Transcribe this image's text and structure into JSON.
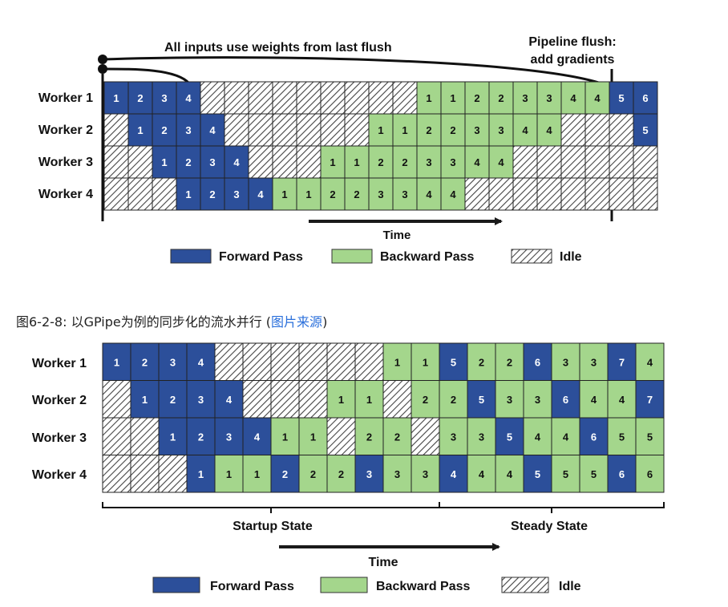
{
  "colors": {
    "forward": "#2c4f9a",
    "backward": "#a4d68c",
    "idle_bg": "#ffffff",
    "idle_line": "#444444",
    "arrow": "#1a1a1a",
    "link": "#2a6fdb"
  },
  "caption": {
    "text": "图6-2-8: 以GPipe为例的同步化的流水并行 (",
    "link": "图片来源",
    "close": ")"
  },
  "diagram1": {
    "annotation_left": "All inputs use weights from last flush",
    "annotation_right_1": "Pipeline flush:",
    "annotation_right_2": "add gradients",
    "time_label": "Time",
    "legend": {
      "forward": "Forward Pass",
      "backward": "Backward Pass",
      "idle": "Idle"
    },
    "workers": [
      "Worker 1",
      "Worker 2",
      "Worker 3",
      "Worker 4"
    ],
    "rows": [
      [
        [
          "F",
          "1"
        ],
        [
          "F",
          "2"
        ],
        [
          "F",
          "3"
        ],
        [
          "F",
          "4"
        ],
        [
          "I",
          ""
        ],
        [
          "I",
          ""
        ],
        [
          "I",
          ""
        ],
        [
          "I",
          ""
        ],
        [
          "I",
          ""
        ],
        [
          "I",
          ""
        ],
        [
          "I",
          ""
        ],
        [
          "I",
          ""
        ],
        [
          "I",
          ""
        ],
        [
          "B",
          "1"
        ],
        [
          "B",
          "1"
        ],
        [
          "B",
          "2"
        ],
        [
          "B",
          "2"
        ],
        [
          "B",
          "3"
        ],
        [
          "B",
          "3"
        ],
        [
          "B",
          "4"
        ],
        [
          "B",
          "4"
        ],
        [
          "F",
          "5"
        ],
        [
          "F",
          "6"
        ]
      ],
      [
        [
          "I",
          ""
        ],
        [
          "F",
          "1"
        ],
        [
          "F",
          "2"
        ],
        [
          "F",
          "3"
        ],
        [
          "F",
          "4"
        ],
        [
          "I",
          ""
        ],
        [
          "I",
          ""
        ],
        [
          "I",
          ""
        ],
        [
          "I",
          ""
        ],
        [
          "I",
          ""
        ],
        [
          "I",
          ""
        ],
        [
          "B",
          "1"
        ],
        [
          "B",
          "1"
        ],
        [
          "B",
          "2"
        ],
        [
          "B",
          "2"
        ],
        [
          "B",
          "3"
        ],
        [
          "B",
          "3"
        ],
        [
          "B",
          "4"
        ],
        [
          "B",
          "4"
        ],
        [
          "I",
          ""
        ],
        [
          "I",
          ""
        ],
        [
          "I",
          ""
        ],
        [
          "F",
          "5"
        ]
      ],
      [
        [
          "I",
          ""
        ],
        [
          "I",
          ""
        ],
        [
          "F",
          "1"
        ],
        [
          "F",
          "2"
        ],
        [
          "F",
          "3"
        ],
        [
          "F",
          "4"
        ],
        [
          "I",
          ""
        ],
        [
          "I",
          ""
        ],
        [
          "I",
          ""
        ],
        [
          "B",
          "1"
        ],
        [
          "B",
          "1"
        ],
        [
          "B",
          "2"
        ],
        [
          "B",
          "2"
        ],
        [
          "B",
          "3"
        ],
        [
          "B",
          "3"
        ],
        [
          "B",
          "4"
        ],
        [
          "B",
          "4"
        ],
        [
          "I",
          ""
        ],
        [
          "I",
          ""
        ],
        [
          "I",
          ""
        ],
        [
          "I",
          ""
        ],
        [
          "I",
          ""
        ],
        [
          "I",
          ""
        ]
      ],
      [
        [
          "I",
          ""
        ],
        [
          "I",
          ""
        ],
        [
          "I",
          ""
        ],
        [
          "F",
          "1"
        ],
        [
          "F",
          "2"
        ],
        [
          "F",
          "3"
        ],
        [
          "F",
          "4"
        ],
        [
          "B",
          "1"
        ],
        [
          "B",
          "1"
        ],
        [
          "B",
          "2"
        ],
        [
          "B",
          "2"
        ],
        [
          "B",
          "3"
        ],
        [
          "B",
          "3"
        ],
        [
          "B",
          "4"
        ],
        [
          "B",
          "4"
        ],
        [
          "I",
          ""
        ],
        [
          "I",
          ""
        ],
        [
          "I",
          ""
        ],
        [
          "I",
          ""
        ],
        [
          "I",
          ""
        ],
        [
          "I",
          ""
        ],
        [
          "I",
          ""
        ],
        [
          "I",
          ""
        ]
      ]
    ]
  },
  "diagram2": {
    "startup_label": "Startup State",
    "steady_label": "Steady State",
    "time_label": "Time",
    "legend": {
      "forward": "Forward Pass",
      "backward": "Backward Pass",
      "idle": "Idle"
    },
    "workers": [
      "Worker 1",
      "Worker 2",
      "Worker 3",
      "Worker 4"
    ],
    "rows": [
      [
        [
          "F",
          "1"
        ],
        [
          "F",
          "2"
        ],
        [
          "F",
          "3"
        ],
        [
          "F",
          "4"
        ],
        [
          "I",
          ""
        ],
        [
          "I",
          ""
        ],
        [
          "I",
          ""
        ],
        [
          "I",
          ""
        ],
        [
          "I",
          ""
        ],
        [
          "I",
          ""
        ],
        [
          "B",
          "1"
        ],
        [
          "B",
          "1"
        ],
        [
          "F",
          "5"
        ],
        [
          "B",
          "2"
        ],
        [
          "B",
          "2"
        ],
        [
          "F",
          "6"
        ],
        [
          "B",
          "3"
        ],
        [
          "B",
          "3"
        ],
        [
          "F",
          "7"
        ],
        [
          "B",
          "4"
        ]
      ],
      [
        [
          "I",
          ""
        ],
        [
          "F",
          "1"
        ],
        [
          "F",
          "2"
        ],
        [
          "F",
          "3"
        ],
        [
          "F",
          "4"
        ],
        [
          "I",
          ""
        ],
        [
          "I",
          ""
        ],
        [
          "I",
          ""
        ],
        [
          "B",
          "1"
        ],
        [
          "B",
          "1"
        ],
        [
          "I",
          ""
        ],
        [
          "B",
          "2"
        ],
        [
          "B",
          "2"
        ],
        [
          "F",
          "5"
        ],
        [
          "B",
          "3"
        ],
        [
          "B",
          "3"
        ],
        [
          "F",
          "6"
        ],
        [
          "B",
          "4"
        ],
        [
          "B",
          "4"
        ],
        [
          "F",
          "7"
        ]
      ],
      [
        [
          "I",
          ""
        ],
        [
          "I",
          ""
        ],
        [
          "F",
          "1"
        ],
        [
          "F",
          "2"
        ],
        [
          "F",
          "3"
        ],
        [
          "F",
          "4"
        ],
        [
          "B",
          "1"
        ],
        [
          "B",
          "1"
        ],
        [
          "I",
          ""
        ],
        [
          "B",
          "2"
        ],
        [
          "B",
          "2"
        ],
        [
          "I",
          ""
        ],
        [
          "B",
          "3"
        ],
        [
          "B",
          "3"
        ],
        [
          "F",
          "5"
        ],
        [
          "B",
          "4"
        ],
        [
          "B",
          "4"
        ],
        [
          "F",
          "6"
        ],
        [
          "B",
          "5"
        ],
        [
          "B",
          "5"
        ]
      ],
      [
        [
          "I",
          ""
        ],
        [
          "I",
          ""
        ],
        [
          "I",
          ""
        ],
        [
          "F",
          "1"
        ],
        [
          "B",
          "1"
        ],
        [
          "B",
          "1"
        ],
        [
          "F",
          "2"
        ],
        [
          "B",
          "2"
        ],
        [
          "B",
          "2"
        ],
        [
          "F",
          "3"
        ],
        [
          "B",
          "3"
        ],
        [
          "B",
          "3"
        ],
        [
          "F",
          "4"
        ],
        [
          "B",
          "4"
        ],
        [
          "B",
          "4"
        ],
        [
          "F",
          "5"
        ],
        [
          "B",
          "5"
        ],
        [
          "B",
          "5"
        ],
        [
          "F",
          "6"
        ],
        [
          "B",
          "6"
        ]
      ]
    ]
  }
}
